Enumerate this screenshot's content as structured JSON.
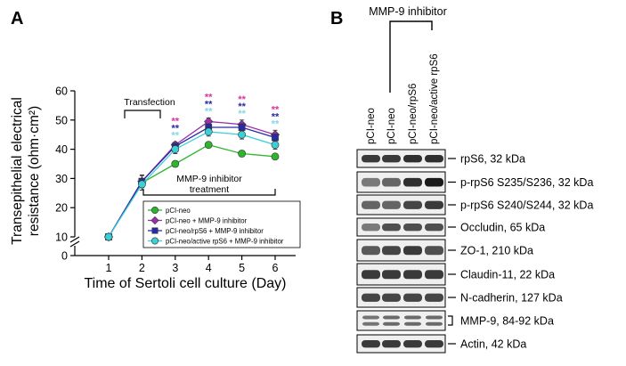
{
  "panel_a": {
    "label": "A",
    "ylabel_line1": "Transepithelial electrical",
    "ylabel_line2": "resistance (ohm·cm²)",
    "xlabel": "Time of Sertoli cell culture (Day)",
    "transfection_label": "Transfection",
    "inhibitor_label_line1": "MMP-9 inhibitor",
    "inhibitor_label_line2": "treatment",
    "legend": [
      {
        "label": "pCI-neo",
        "color": "#2db52d",
        "marker": "circle"
      },
      {
        "label": "pCI-neo + MMP-9 inhibitor",
        "color": "#9b2fae",
        "marker": "diamond"
      },
      {
        "label": "pCI-neo/rpS6 + MMP-9 inhibitor",
        "color": "#2a2aa8",
        "marker": "square"
      },
      {
        "label": "pCI-neo/active rpS6 + MMP-9 inhibitor",
        "color": "#3ad0d8",
        "marker": "circle"
      }
    ],
    "sig_marks": [
      "**",
      "**",
      "**"
    ],
    "sig_colors": [
      "#e0329a",
      "#2a2aa8",
      "#7fd9e6"
    ]
  },
  "chart_data": {
    "type": "line",
    "x": [
      1,
      2,
      3,
      4,
      5,
      6
    ],
    "xticks": [
      "1",
      "2",
      "3",
      "4",
      "5",
      "6"
    ],
    "yticks": [
      "0",
      "10",
      "20",
      "30",
      "40",
      "50",
      "60"
    ],
    "ylim": [
      0,
      60
    ],
    "series": [
      {
        "name": "pCI-neo",
        "values": [
          10,
          28.5,
          35,
          41.5,
          38.5,
          37.5
        ],
        "err": [
          0.8,
          2.5,
          1,
          1,
          1,
          1
        ]
      },
      {
        "name": "pCI-neo + MMP-9 inhibitor",
        "values": [
          10,
          29,
          41.5,
          49.5,
          48.5,
          45
        ],
        "err": [
          0.8,
          2,
          1,
          1.2,
          1.5,
          1.5
        ]
      },
      {
        "name": "pCI-neo/rpS6 + MMP-9 inhibitor",
        "values": [
          10,
          29,
          41,
          47.5,
          47.5,
          44
        ],
        "err": [
          0.8,
          2.2,
          1,
          1.2,
          1.2,
          1.2
        ]
      },
      {
        "name": "pCI-neo/active rpS6 + MMP-9 inhibitor",
        "values": [
          10,
          28,
          40,
          46,
          45,
          41.5
        ],
        "err": [
          0.8,
          2,
          1.5,
          1.5,
          1.5,
          1.5
        ]
      }
    ],
    "significance_days": [
      3,
      4,
      5,
      6
    ]
  },
  "panel_b": {
    "label": "B",
    "header": "MMP-9 inhibitor",
    "lanes": [
      "pCI-neo",
      "pCI-neo",
      "pCI-neo/rpS6",
      "pCI-neo/active rpS6"
    ],
    "bands": [
      {
        "label": "rpS6, 32 kDa",
        "bracket": false
      },
      {
        "label": "p-rpS6 S235/S236, 32 kDa",
        "bracket": false
      },
      {
        "label": "p-rpS6 S240/S244, 32 kDa",
        "bracket": false
      },
      {
        "label": "Occludin, 65 kDa",
        "bracket": false
      },
      {
        "label": "ZO-1, 210 kDa",
        "bracket": false
      },
      {
        "label": "Claudin-11, 22 kDa",
        "bracket": false
      },
      {
        "label": "N-cadherin, 127 kDa",
        "bracket": false
      },
      {
        "label": "MMP-9, 84-92 kDa",
        "bracket": true
      },
      {
        "label": "Actin, 42 kDa",
        "bracket": false
      }
    ]
  }
}
